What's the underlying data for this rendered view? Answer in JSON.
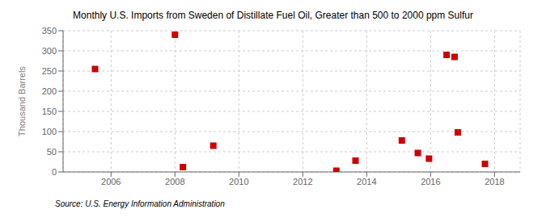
{
  "chart_data": {
    "type": "scatter",
    "title": "Monthly U.S. Imports from Sweden of Distillate Fuel Oil, Greater than 500 to 2000 ppm Sulfur",
    "ylabel": "Thousand Barrels",
    "annotations": [
      "Source: U.S. Energy Information Administration"
    ],
    "x": [
      2005.5,
      2008.0,
      2008.25,
      2009.2,
      2013.05,
      2013.65,
      2015.1,
      2015.6,
      2015.95,
      2016.5,
      2016.75,
      2016.85,
      2017.7
    ],
    "values": [
      255,
      340,
      12,
      65,
      3,
      28,
      78,
      47,
      33,
      290,
      285,
      98,
      20
    ],
    "color": "#cc0000",
    "marker": "square",
    "xlim": [
      2004.5,
      2018.8
    ],
    "xticks": [
      2006,
      2008,
      2010,
      2012,
      2014,
      2016,
      2018
    ],
    "ylim": [
      0,
      350
    ],
    "yticks": [
      0,
      50,
      100,
      150,
      200,
      250,
      300,
      350
    ],
    "grid": true
  }
}
